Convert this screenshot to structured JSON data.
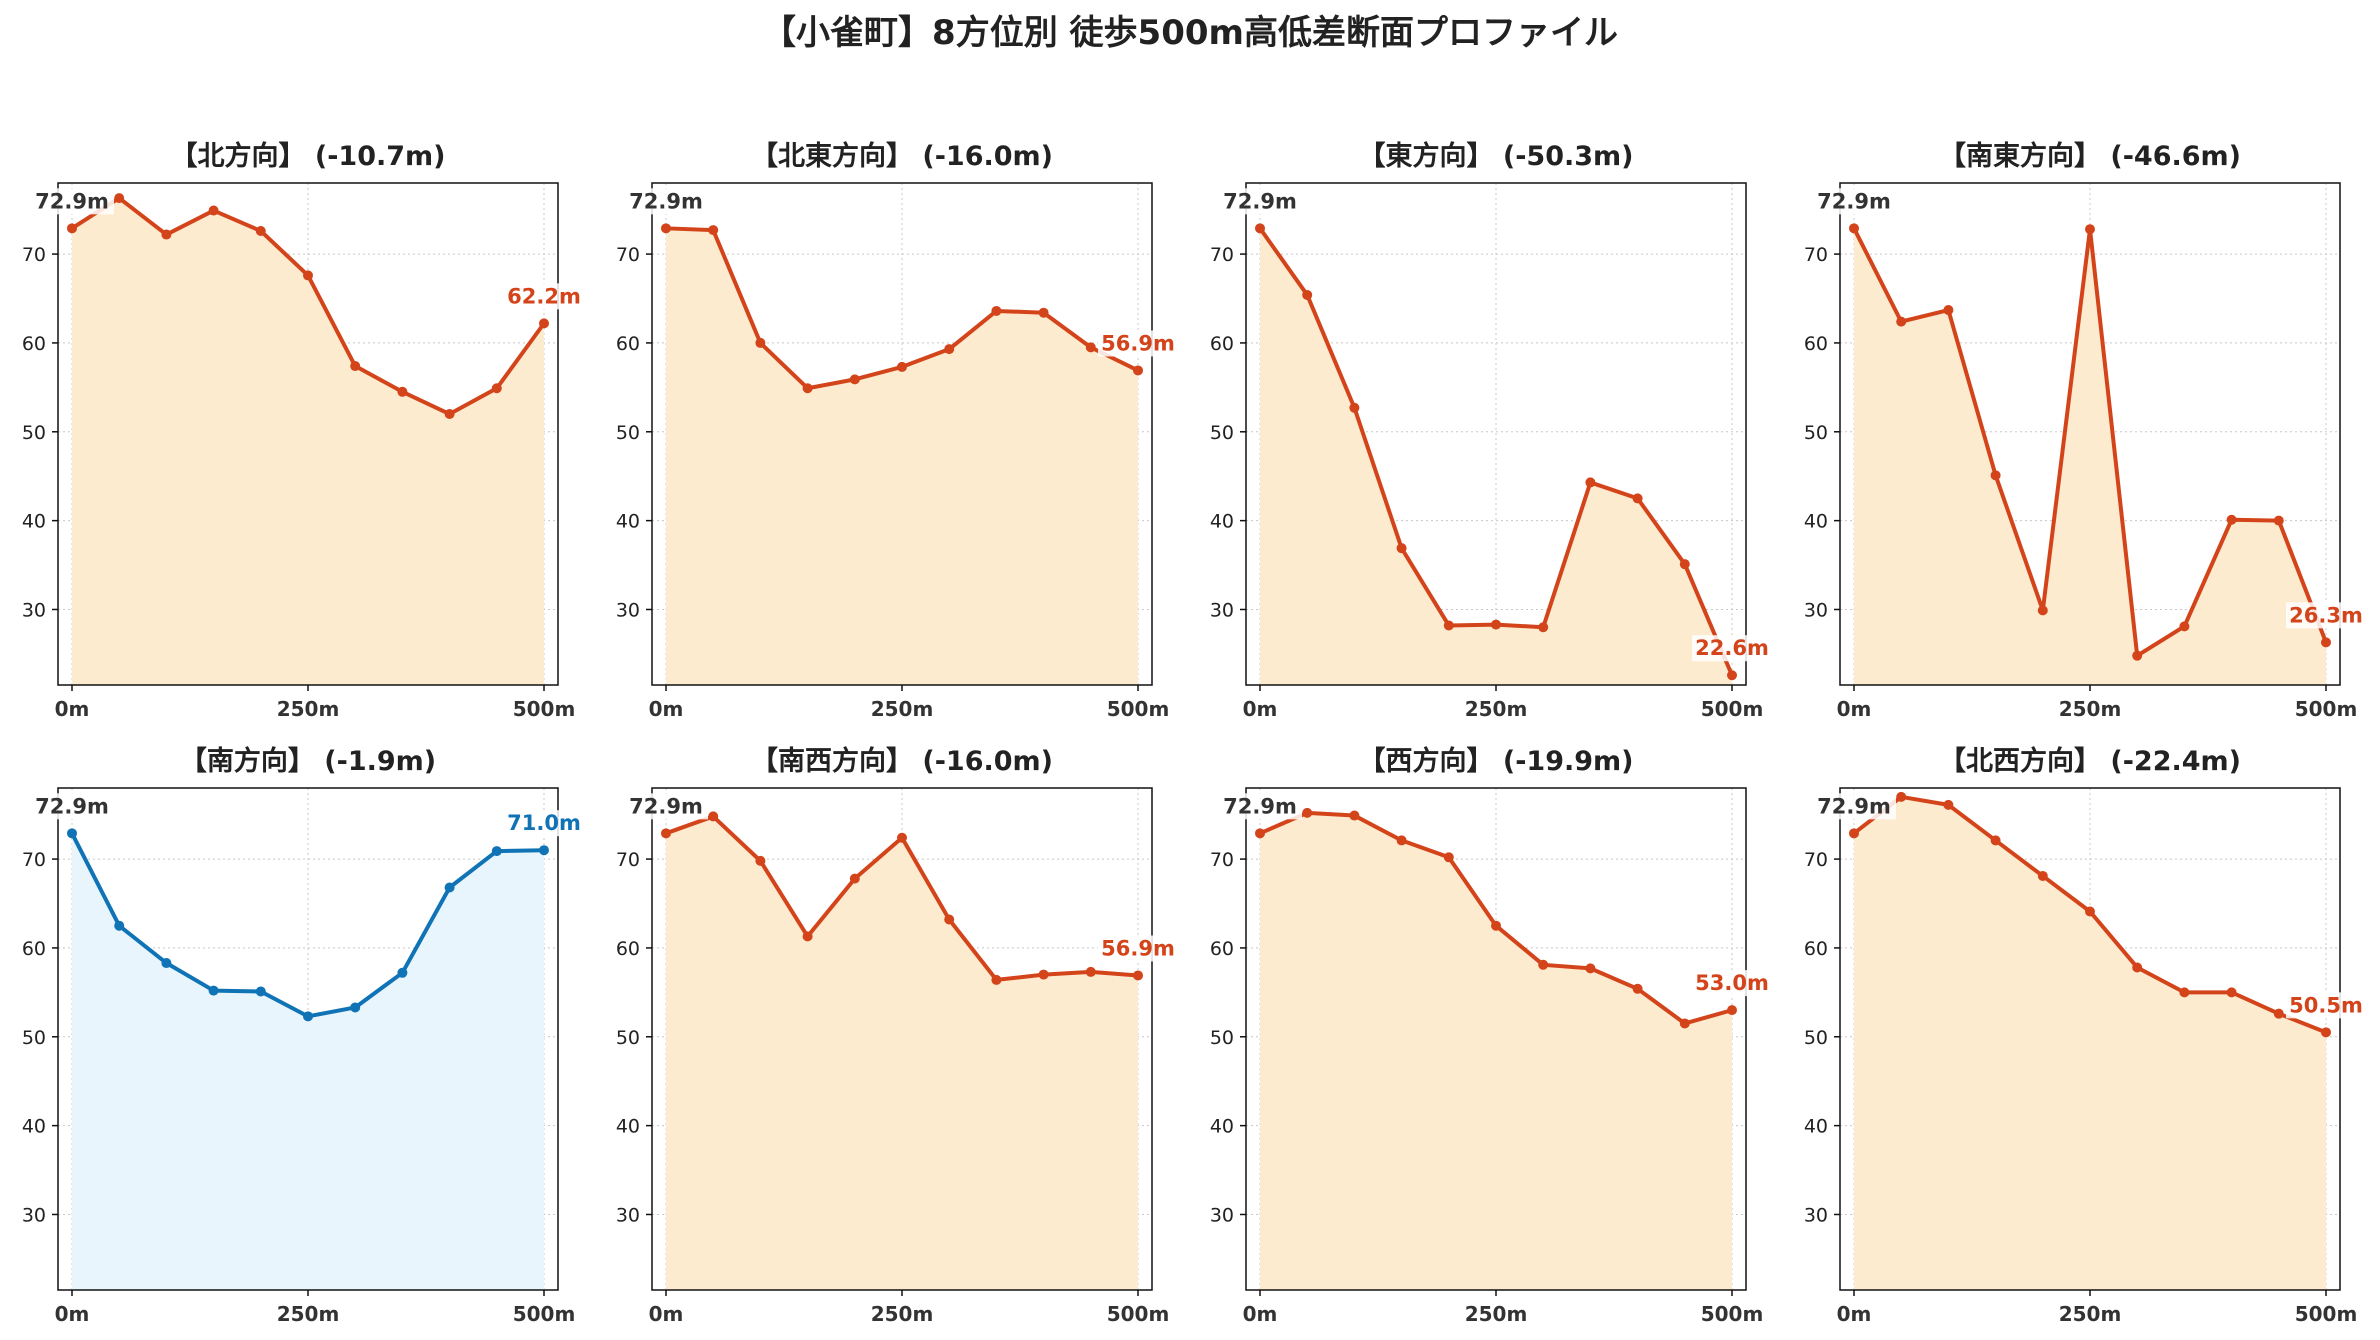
{
  "title": "【小雀町】8方位別 徒歩500m高低差断面プロファイル",
  "colors": {
    "down_line": "#d4441b",
    "down_fill": "#fdebd0",
    "up_line": "#0f73b6",
    "up_fill": "#e8f5fc",
    "start_label": "#333333",
    "grid": "#c8c8c8"
  },
  "chart_data": [
    {
      "type": "area",
      "title": "【北方向】 (-10.7m)",
      "trend": "down",
      "x": [
        0,
        50,
        100,
        150,
        200,
        250,
        300,
        350,
        400,
        450,
        500
      ],
      "values": [
        72.9,
        76.3,
        72.2,
        74.9,
        72.6,
        67.6,
        57.4,
        54.5,
        52.0,
        54.9,
        62.2
      ],
      "start_label": "72.9m",
      "end_label": "62.2m",
      "ylim": [
        21.5,
        78
      ],
      "yticks": [
        30,
        40,
        50,
        60,
        70
      ],
      "xticklabels": [
        "0m",
        "250m",
        "500m"
      ],
      "grid": true
    },
    {
      "type": "area",
      "title": "【北東方向】 (-16.0m)",
      "trend": "down",
      "x": [
        0,
        50,
        100,
        150,
        200,
        250,
        300,
        350,
        400,
        450,
        500
      ],
      "values": [
        72.9,
        72.7,
        60.0,
        54.9,
        55.9,
        57.3,
        59.3,
        63.6,
        63.4,
        59.5,
        56.9
      ],
      "start_label": "72.9m",
      "end_label": "56.9m",
      "ylim": [
        21.5,
        78
      ],
      "yticks": [
        30,
        40,
        50,
        60,
        70
      ],
      "xticklabels": [
        "0m",
        "250m",
        "500m"
      ],
      "grid": true
    },
    {
      "type": "area",
      "title": "【東方向】 (-50.3m)",
      "trend": "down",
      "x": [
        0,
        50,
        100,
        150,
        200,
        250,
        300,
        350,
        400,
        450,
        500
      ],
      "values": [
        72.9,
        65.4,
        52.7,
        36.9,
        28.2,
        28.3,
        28.0,
        44.3,
        42.5,
        35.1,
        22.6
      ],
      "start_label": "72.9m",
      "end_label": "22.6m",
      "ylim": [
        21.5,
        78
      ],
      "yticks": [
        30,
        40,
        50,
        60,
        70
      ],
      "xticklabels": [
        "0m",
        "250m",
        "500m"
      ],
      "grid": true
    },
    {
      "type": "area",
      "title": "【南東方向】 (-46.6m)",
      "trend": "down",
      "x": [
        0,
        50,
        100,
        150,
        200,
        250,
        300,
        350,
        400,
        450,
        500
      ],
      "values": [
        72.9,
        62.4,
        63.7,
        45.1,
        29.9,
        72.8,
        24.8,
        28.1,
        40.1,
        40.0,
        26.3
      ],
      "start_label": "72.9m",
      "end_label": "26.3m",
      "ylim": [
        21.5,
        78
      ],
      "yticks": [
        30,
        40,
        50,
        60,
        70
      ],
      "xticklabels": [
        "0m",
        "250m",
        "500m"
      ],
      "grid": true
    },
    {
      "type": "area",
      "title": "【南方向】 (-1.9m)",
      "trend": "up",
      "x": [
        0,
        50,
        100,
        150,
        200,
        250,
        300,
        350,
        400,
        450,
        500
      ],
      "values": [
        72.9,
        62.5,
        58.3,
        55.2,
        55.1,
        52.3,
        53.3,
        57.2,
        66.8,
        70.9,
        71.0
      ],
      "start_label": "72.9m",
      "end_label": "71.0m",
      "ylim": [
        21.5,
        78
      ],
      "yticks": [
        30,
        40,
        50,
        60,
        70
      ],
      "xticklabels": [
        "0m",
        "250m",
        "500m"
      ],
      "grid": true
    },
    {
      "type": "area",
      "title": "【南西方向】 (-16.0m)",
      "trend": "down",
      "x": [
        0,
        50,
        100,
        150,
        200,
        250,
        300,
        350,
        400,
        450,
        500
      ],
      "values": [
        72.9,
        74.8,
        69.8,
        61.3,
        67.8,
        72.4,
        63.2,
        56.4,
        57.0,
        57.3,
        56.9
      ],
      "start_label": "72.9m",
      "end_label": "56.9m",
      "ylim": [
        21.5,
        78
      ],
      "yticks": [
        30,
        40,
        50,
        60,
        70
      ],
      "xticklabels": [
        "0m",
        "250m",
        "500m"
      ],
      "grid": true
    },
    {
      "type": "area",
      "title": "【西方向】 (-19.9m)",
      "trend": "down",
      "x": [
        0,
        50,
        100,
        150,
        200,
        250,
        300,
        350,
        400,
        450,
        500
      ],
      "values": [
        72.9,
        75.2,
        74.9,
        72.1,
        70.2,
        62.5,
        58.1,
        57.7,
        55.4,
        51.5,
        53.0
      ],
      "start_label": "72.9m",
      "end_label": "53.0m",
      "ylim": [
        21.5,
        78
      ],
      "yticks": [
        30,
        40,
        50,
        60,
        70
      ],
      "xticklabels": [
        "0m",
        "250m",
        "500m"
      ],
      "grid": true
    },
    {
      "type": "area",
      "title": "【北西方向】 (-22.4m)",
      "trend": "down",
      "x": [
        0,
        50,
        100,
        150,
        200,
        250,
        300,
        350,
        400,
        450,
        500
      ],
      "values": [
        72.9,
        77.0,
        76.1,
        72.1,
        68.1,
        64.1,
        57.8,
        55.0,
        55.0,
        52.6,
        50.5
      ],
      "start_label": "72.9m",
      "end_label": "50.5m",
      "ylim": [
        21.5,
        78
      ],
      "yticks": [
        30,
        40,
        50,
        60,
        70
      ],
      "xticklabels": [
        "0m",
        "250m",
        "500m"
      ],
      "grid": true
    }
  ]
}
